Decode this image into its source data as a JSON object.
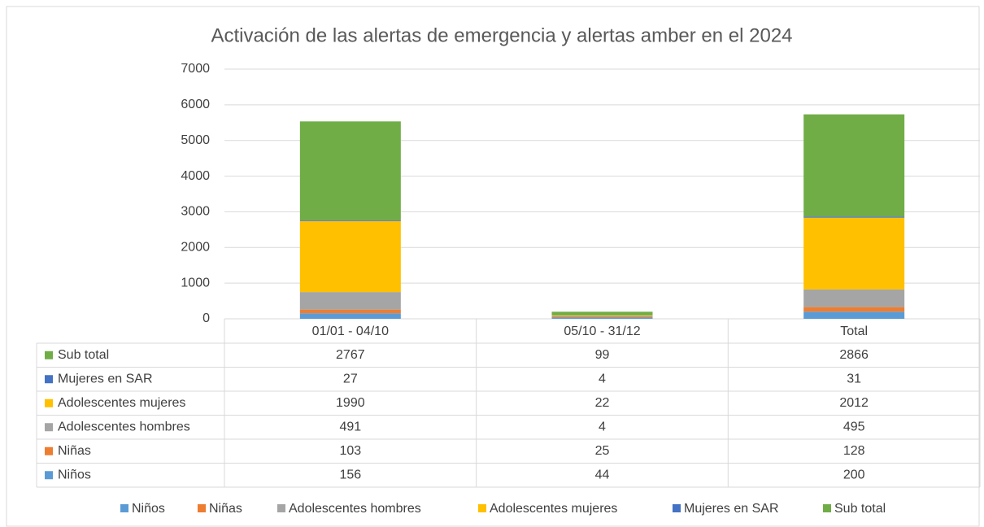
{
  "chart_data": {
    "type": "bar",
    "stacked": true,
    "title": "Activación de las alertas de emergencia y alertas amber en el 2024",
    "categories": [
      "01/01 - 04/10",
      "05/10 - 31/12",
      "Total"
    ],
    "series": [
      {
        "name": "Niños",
        "color": "#5b9bd5",
        "values": [
          156,
          44,
          200
        ]
      },
      {
        "name": "Niñas",
        "color": "#ed7d31",
        "values": [
          103,
          25,
          128
        ]
      },
      {
        "name": "Adolescentes hombres",
        "color": "#a5a5a5",
        "values": [
          491,
          4,
          495
        ]
      },
      {
        "name": "Adolescentes mujeres",
        "color": "#ffc000",
        "values": [
          1990,
          22,
          2012
        ]
      },
      {
        "name": "Mujeres en SAR",
        "color": "#4472c4",
        "values": [
          27,
          4,
          31
        ]
      },
      {
        "name": "Sub total",
        "color": "#70ad47",
        "values": [
          2767,
          99,
          2866
        ]
      }
    ],
    "ylim": [
      0,
      7000
    ],
    "yticks": [
      0,
      1000,
      2000,
      3000,
      4000,
      5000,
      6000,
      7000
    ],
    "grid": true,
    "legend": "bottom"
  }
}
